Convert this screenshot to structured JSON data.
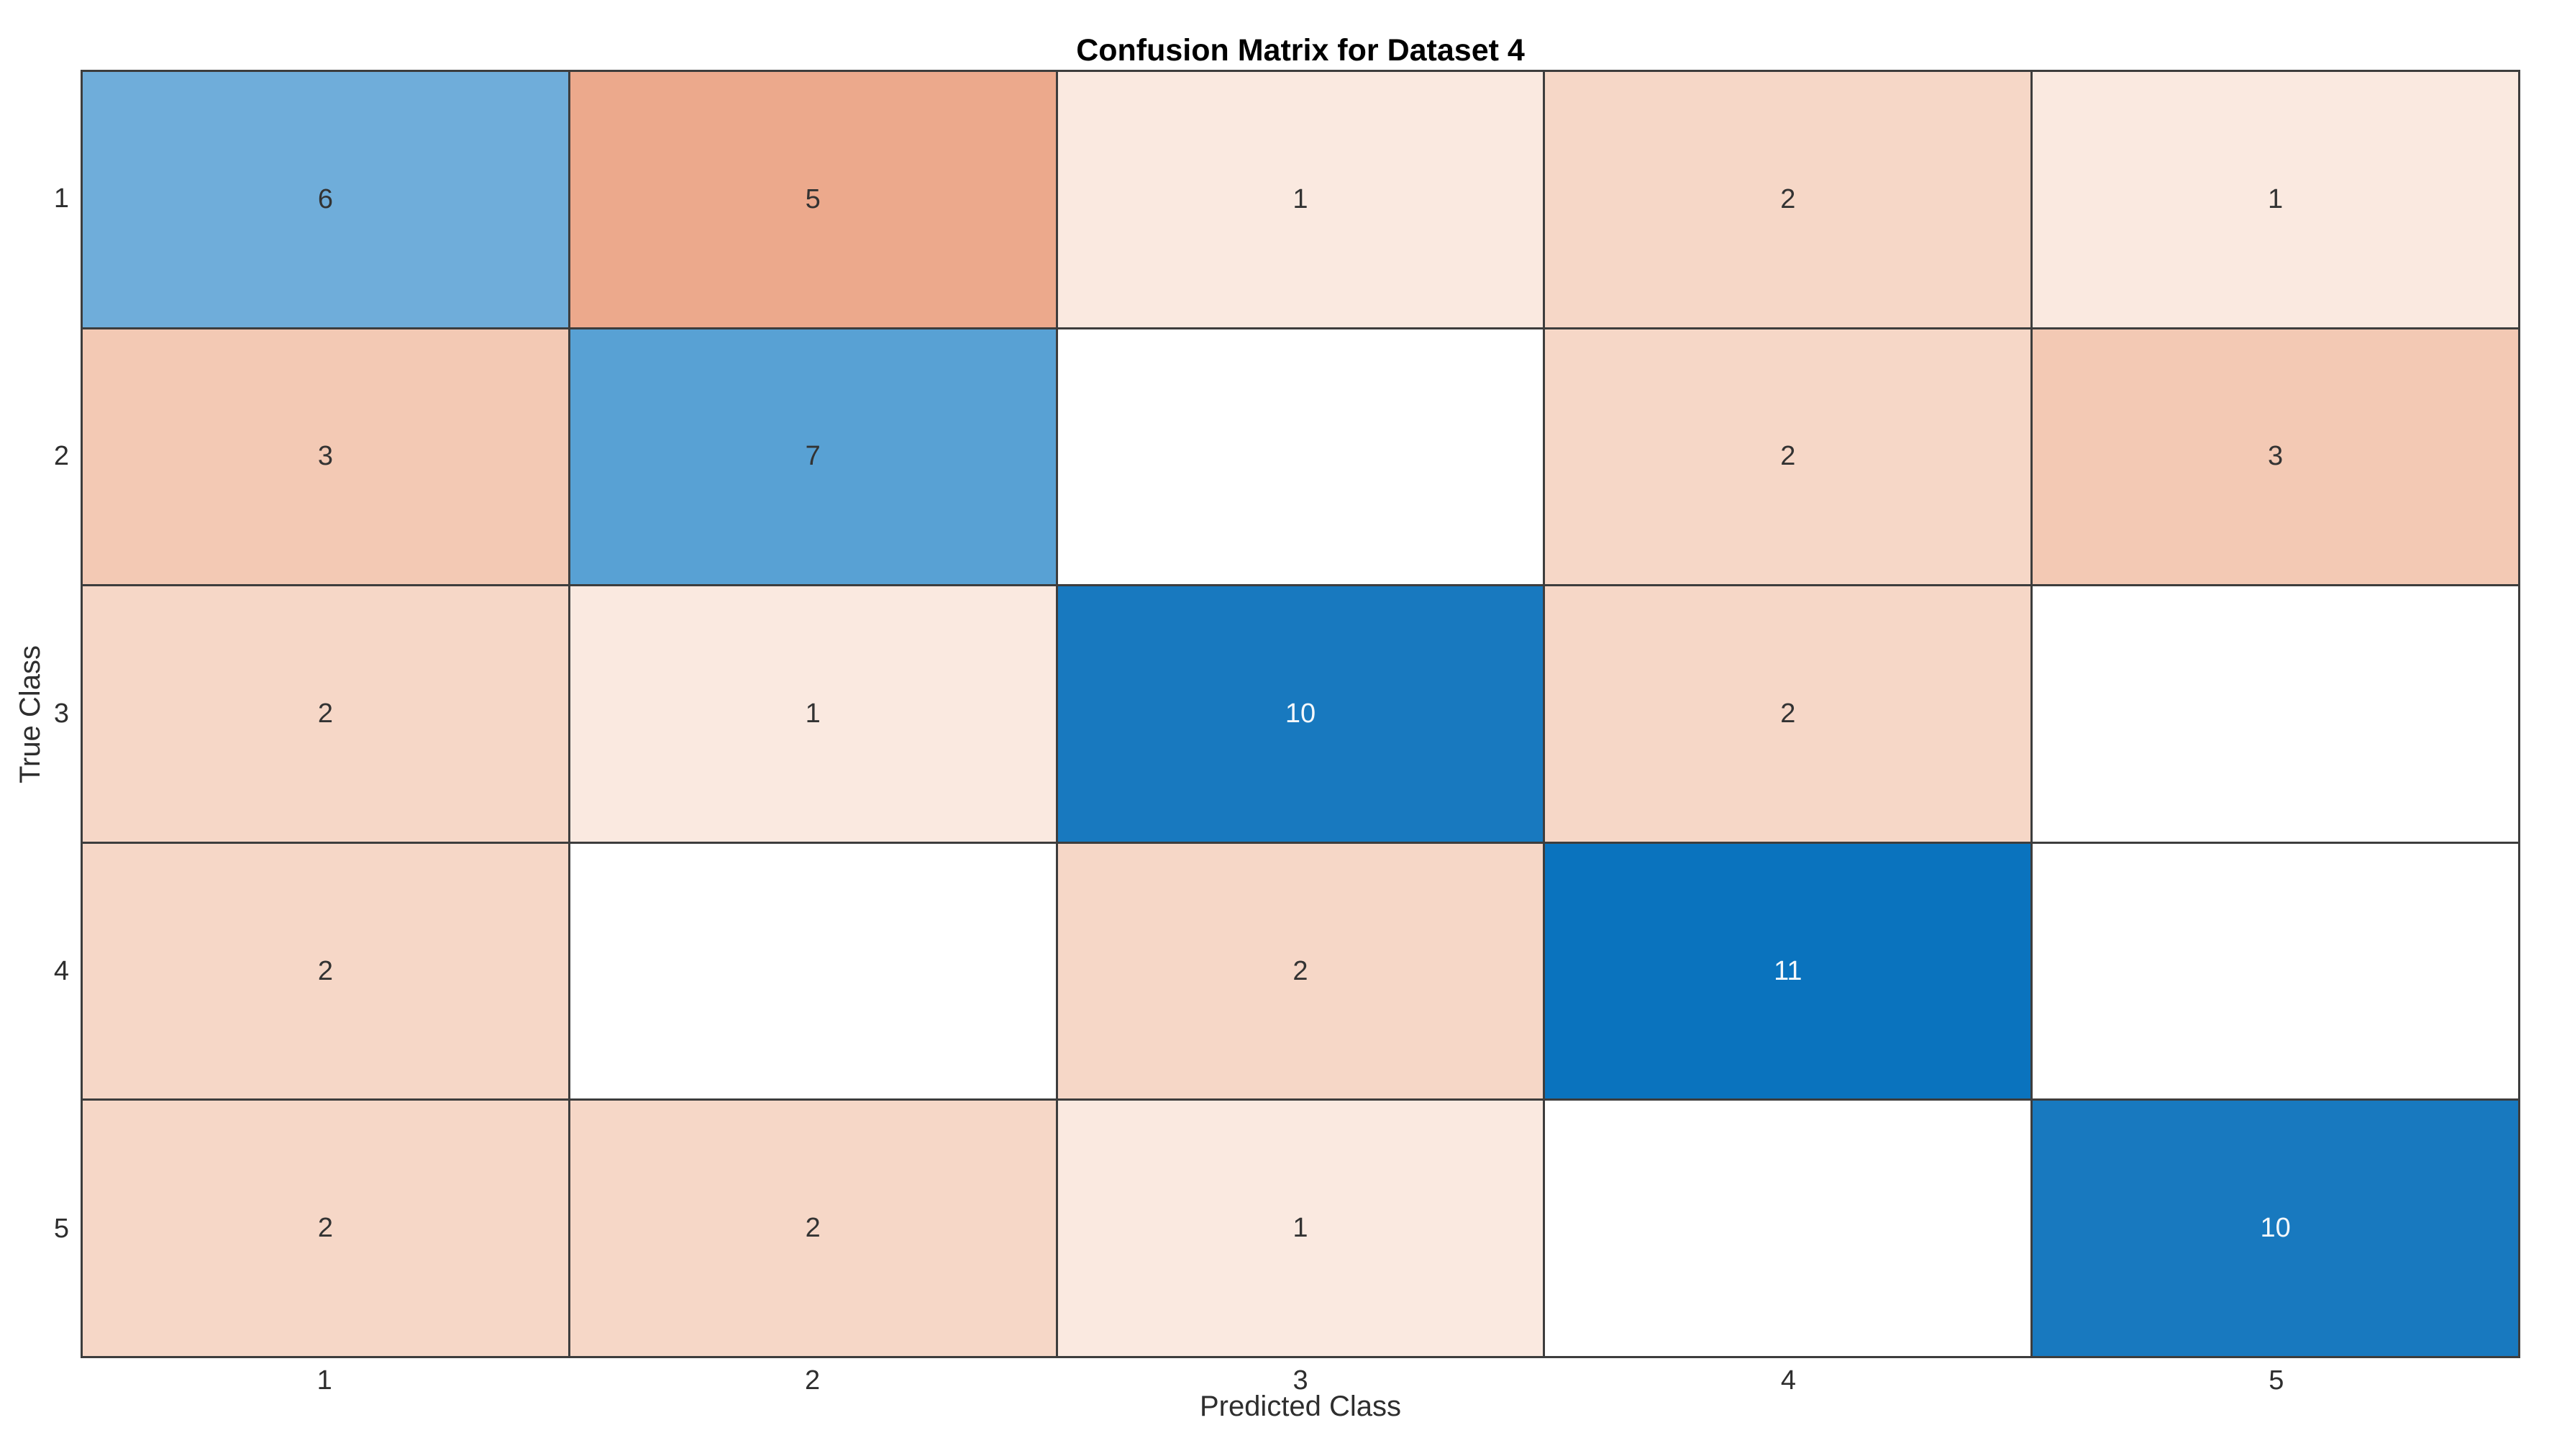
{
  "figure": {
    "title": "Confusion Matrix for Dataset 4",
    "x_axis_label": "Predicted Class",
    "y_axis_label": "True Class"
  },
  "colors": {
    "background": "#ffffff",
    "grid_line": "#3d3d3d",
    "diagonal_base": "#0072bd",
    "off_diagonal_base": "#d95319",
    "dark_cell_text": "#333333",
    "light_cell_text": "#f4f8fb",
    "axis_text": "#2e2e2e",
    "title_text": "#000000"
  },
  "chart_data": {
    "type": "heatmap",
    "title": "Confusion Matrix for Dataset 4",
    "xlabel": "Predicted Class",
    "ylabel": "True Class",
    "x_tick_labels": [
      "1",
      "2",
      "3",
      "4",
      "5"
    ],
    "y_tick_labels": [
      "1",
      "2",
      "3",
      "4",
      "5"
    ],
    "matrix": [
      [
        6,
        5,
        1,
        2,
        1
      ],
      [
        3,
        7,
        0,
        2,
        3
      ],
      [
        2,
        1,
        10,
        2,
        0
      ],
      [
        2,
        0,
        2,
        11,
        0
      ],
      [
        2,
        2,
        1,
        0,
        10
      ]
    ],
    "cells": [
      {
        "row": 1,
        "col": 1,
        "value": 6,
        "label": "6",
        "bg": "#6fadda",
        "fg": "#333333"
      },
      {
        "row": 1,
        "col": 2,
        "value": 5,
        "label": "5",
        "bg": "#eca98c",
        "fg": "#333333"
      },
      {
        "row": 1,
        "col": 3,
        "value": 1,
        "label": "1",
        "bg": "#fae9e0",
        "fg": "#333333"
      },
      {
        "row": 1,
        "col": 4,
        "value": 2,
        "label": "2",
        "bg": "#f6d7c7",
        "fg": "#333333"
      },
      {
        "row": 1,
        "col": 5,
        "value": 1,
        "label": "1",
        "bg": "#fae9e0",
        "fg": "#333333"
      },
      {
        "row": 2,
        "col": 1,
        "value": 3,
        "label": "3",
        "bg": "#f3c9b4",
        "fg": "#333333"
      },
      {
        "row": 2,
        "col": 2,
        "value": 7,
        "label": "7",
        "bg": "#58a1d4",
        "fg": "#333333"
      },
      {
        "row": 2,
        "col": 3,
        "value": 0,
        "label": "",
        "bg": "#ffffff",
        "fg": "#333333"
      },
      {
        "row": 2,
        "col": 4,
        "value": 2,
        "label": "2",
        "bg": "#f6d7c7",
        "fg": "#333333"
      },
      {
        "row": 2,
        "col": 5,
        "value": 3,
        "label": "3",
        "bg": "#f3c9b4",
        "fg": "#333333"
      },
      {
        "row": 3,
        "col": 1,
        "value": 2,
        "label": "2",
        "bg": "#f6d7c7",
        "fg": "#333333"
      },
      {
        "row": 3,
        "col": 2,
        "value": 1,
        "label": "1",
        "bg": "#fae9e0",
        "fg": "#333333"
      },
      {
        "row": 3,
        "col": 3,
        "value": 10,
        "label": "10",
        "bg": "#1879bf",
        "fg": "#f4f8fb"
      },
      {
        "row": 3,
        "col": 4,
        "value": 2,
        "label": "2",
        "bg": "#f6d7c7",
        "fg": "#333333"
      },
      {
        "row": 3,
        "col": 5,
        "value": 0,
        "label": "",
        "bg": "#ffffff",
        "fg": "#333333"
      },
      {
        "row": 4,
        "col": 1,
        "value": 2,
        "label": "2",
        "bg": "#f6d7c7",
        "fg": "#333333"
      },
      {
        "row": 4,
        "col": 2,
        "value": 0,
        "label": "",
        "bg": "#ffffff",
        "fg": "#333333"
      },
      {
        "row": 4,
        "col": 3,
        "value": 2,
        "label": "2",
        "bg": "#f6d7c7",
        "fg": "#333333"
      },
      {
        "row": 4,
        "col": 4,
        "value": 11,
        "label": "11",
        "bg": "#0a73be",
        "fg": "#f4f8fb"
      },
      {
        "row": 4,
        "col": 5,
        "value": 0,
        "label": "",
        "bg": "#ffffff",
        "fg": "#333333"
      },
      {
        "row": 5,
        "col": 1,
        "value": 2,
        "label": "2",
        "bg": "#f6d7c7",
        "fg": "#333333"
      },
      {
        "row": 5,
        "col": 2,
        "value": 2,
        "label": "2",
        "bg": "#f6d7c7",
        "fg": "#333333"
      },
      {
        "row": 5,
        "col": 3,
        "value": 1,
        "label": "1",
        "bg": "#fae9e0",
        "fg": "#333333"
      },
      {
        "row": 5,
        "col": 4,
        "value": 0,
        "label": "",
        "bg": "#ffffff",
        "fg": "#333333"
      },
      {
        "row": 5,
        "col": 5,
        "value": 10,
        "label": "10",
        "bg": "#1879bf",
        "fg": "#f4f8fb"
      }
    ]
  }
}
